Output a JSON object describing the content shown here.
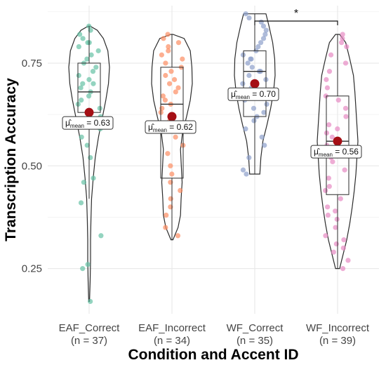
{
  "chart_data": {
    "type": "violin",
    "xlabel": "Condition and Accent ID",
    "ylabel": "Transcription Accuracy",
    "ylim": [
      0.14,
      0.89
    ],
    "yticks": [
      0.25,
      0.5,
      0.75
    ],
    "ytick_labels": [
      "0.25",
      "0.50",
      "0.75"
    ],
    "grid": true,
    "mean_label_prefix": "μ̂",
    "mean_label_subscript": "mean",
    "groups": [
      {
        "name": "EAF_Correct",
        "n_label": "(n = 37)",
        "color": "#66c2a5",
        "mean": 0.63,
        "mean_label": "0.63",
        "q1": 0.63,
        "median": 0.68,
        "q3": 0.75,
        "whisker_low": 0.42,
        "whisker_high": 0.84,
        "min": 0.17,
        "max": 0.84,
        "density": [
          [
            0.17,
            0.02
          ],
          [
            0.22,
            0.05
          ],
          [
            0.27,
            0.07
          ],
          [
            0.32,
            0.07
          ],
          [
            0.37,
            0.09
          ],
          [
            0.42,
            0.12
          ],
          [
            0.47,
            0.2
          ],
          [
            0.52,
            0.3
          ],
          [
            0.57,
            0.46
          ],
          [
            0.62,
            0.66
          ],
          [
            0.66,
            0.82
          ],
          [
            0.7,
            0.95
          ],
          [
            0.74,
            1.0
          ],
          [
            0.78,
            0.92
          ],
          [
            0.81,
            0.7
          ],
          [
            0.83,
            0.4
          ],
          [
            0.84,
            0.05
          ]
        ],
        "points": [
          0.84,
          0.83,
          0.82,
          0.81,
          0.8,
          0.8,
          0.79,
          0.78,
          0.77,
          0.76,
          0.75,
          0.74,
          0.73,
          0.72,
          0.71,
          0.7,
          0.7,
          0.69,
          0.68,
          0.67,
          0.66,
          0.65,
          0.64,
          0.62,
          0.61,
          0.6,
          0.59,
          0.57,
          0.55,
          0.52,
          0.47,
          0.46,
          0.41,
          0.33,
          0.26,
          0.25,
          0.17
        ]
      },
      {
        "name": "EAF_Incorrect",
        "n_label": "(n = 34)",
        "color": "#fc8d62",
        "mean": 0.62,
        "mean_label": "0.62",
        "q1": 0.47,
        "median": 0.65,
        "q3": 0.74,
        "whisker_low": 0.32,
        "whisker_high": 0.82,
        "min": 0.32,
        "max": 0.82,
        "density": [
          [
            0.32,
            0.05
          ],
          [
            0.35,
            0.3
          ],
          [
            0.38,
            0.42
          ],
          [
            0.42,
            0.45
          ],
          [
            0.46,
            0.5
          ],
          [
            0.5,
            0.46
          ],
          [
            0.54,
            0.42
          ],
          [
            0.58,
            0.52
          ],
          [
            0.62,
            0.72
          ],
          [
            0.66,
            0.9
          ],
          [
            0.7,
            1.0
          ],
          [
            0.74,
            0.98
          ],
          [
            0.78,
            0.9
          ],
          [
            0.81,
            0.6
          ],
          [
            0.82,
            0.05
          ]
        ],
        "points": [
          0.82,
          0.81,
          0.8,
          0.79,
          0.78,
          0.77,
          0.76,
          0.75,
          0.74,
          0.73,
          0.72,
          0.71,
          0.7,
          0.69,
          0.68,
          0.67,
          0.66,
          0.65,
          0.64,
          0.63,
          0.61,
          0.59,
          0.57,
          0.55,
          0.53,
          0.5,
          0.48,
          0.46,
          0.44,
          0.42,
          0.4,
          0.38,
          0.35,
          0.33
        ]
      },
      {
        "name": "WF_Correct",
        "n_label": "(n = 35)",
        "color": "#8da0cb",
        "mean": 0.7,
        "mean_label": "0.70",
        "q1": 0.62,
        "median": 0.73,
        "q3": 0.78,
        "whisker_low": 0.48,
        "whisker_high": 0.87,
        "min": 0.48,
        "max": 0.87,
        "density": [
          [
            0.48,
            0.25
          ],
          [
            0.52,
            0.3
          ],
          [
            0.56,
            0.4
          ],
          [
            0.6,
            0.6
          ],
          [
            0.64,
            0.78
          ],
          [
            0.68,
            0.92
          ],
          [
            0.72,
            1.0
          ],
          [
            0.76,
            0.98
          ],
          [
            0.8,
            0.88
          ],
          [
            0.84,
            0.7
          ],
          [
            0.87,
            0.55
          ]
        ],
        "points": [
          0.87,
          0.86,
          0.85,
          0.84,
          0.83,
          0.82,
          0.81,
          0.8,
          0.79,
          0.78,
          0.77,
          0.76,
          0.76,
          0.75,
          0.74,
          0.73,
          0.73,
          0.72,
          0.71,
          0.7,
          0.69,
          0.68,
          0.67,
          0.66,
          0.65,
          0.64,
          0.63,
          0.62,
          0.61,
          0.59,
          0.57,
          0.55,
          0.52,
          0.49,
          0.48
        ]
      },
      {
        "name": "WF_Incorrect",
        "n_label": "(n = 39)",
        "color": "#e78ac3",
        "mean": 0.56,
        "mean_label": "0.56",
        "q1": 0.43,
        "median": 0.56,
        "q3": 0.67,
        "whisker_low": 0.25,
        "whisker_high": 0.82,
        "min": 0.25,
        "max": 0.82,
        "density": [
          [
            0.25,
            0.1
          ],
          [
            0.28,
            0.25
          ],
          [
            0.32,
            0.45
          ],
          [
            0.36,
            0.6
          ],
          [
            0.4,
            0.72
          ],
          [
            0.44,
            0.82
          ],
          [
            0.48,
            0.9
          ],
          [
            0.52,
            0.95
          ],
          [
            0.56,
            1.0
          ],
          [
            0.6,
            0.95
          ],
          [
            0.64,
            0.9
          ],
          [
            0.68,
            0.85
          ],
          [
            0.72,
            0.78
          ],
          [
            0.76,
            0.6
          ],
          [
            0.8,
            0.4
          ],
          [
            0.82,
            0.1
          ]
        ],
        "points": [
          0.82,
          0.81,
          0.8,
          0.79,
          0.77,
          0.75,
          0.73,
          0.71,
          0.69,
          0.67,
          0.66,
          0.64,
          0.62,
          0.6,
          0.59,
          0.58,
          0.57,
          0.56,
          0.55,
          0.53,
          0.52,
          0.51,
          0.49,
          0.47,
          0.45,
          0.44,
          0.42,
          0.4,
          0.39,
          0.38,
          0.37,
          0.35,
          0.33,
          0.32,
          0.31,
          0.3,
          0.29,
          0.27,
          0.25
        ]
      }
    ],
    "significance": [
      {
        "from": "WF_Correct",
        "to": "WF_Incorrect",
        "label": "*"
      }
    ]
  }
}
